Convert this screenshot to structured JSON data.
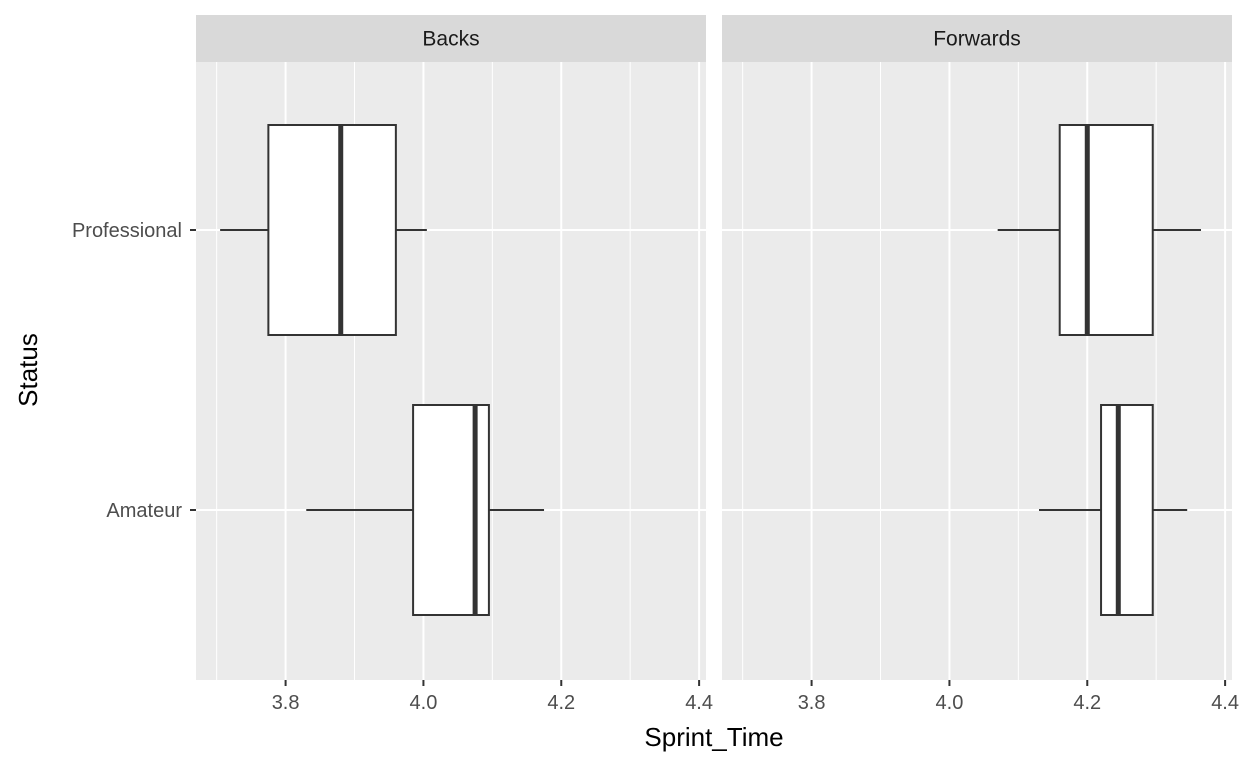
{
  "chart_data": {
    "type": "boxplot",
    "orientation": "horizontal",
    "xlabel": "Sprint_Time",
    "ylabel": "Status",
    "xlim": [
      3.67,
      4.41
    ],
    "x_ticks": [
      3.8,
      4.0,
      4.2,
      4.4
    ],
    "x_tick_labels": [
      "3.8",
      "4.0",
      "4.2",
      "4.4"
    ],
    "categories": [
      "Professional",
      "Amateur"
    ],
    "grid": true,
    "colors": {
      "panel_bg": "#ebebeb",
      "strip_bg": "#d9d9d9",
      "grid": "#ffffff",
      "box_fill": "#ffffff",
      "box_stroke": "#333333"
    },
    "facets": [
      {
        "label": "Backs",
        "boxes": [
          {
            "category": "Professional",
            "whisker_low": 3.705,
            "q1": 3.775,
            "median": 3.88,
            "q3": 3.96,
            "whisker_high": 4.005
          },
          {
            "category": "Amateur",
            "whisker_low": 3.83,
            "q1": 3.985,
            "median": 4.075,
            "q3": 4.095,
            "whisker_high": 4.175
          }
        ]
      },
      {
        "label": "Forwards",
        "boxes": [
          {
            "category": "Professional",
            "whisker_low": 4.07,
            "q1": 4.16,
            "median": 4.2,
            "q3": 4.295,
            "whisker_high": 4.365
          },
          {
            "category": "Amateur",
            "whisker_low": 4.13,
            "q1": 4.22,
            "median": 4.245,
            "q3": 4.295,
            "whisker_high": 4.345
          }
        ]
      }
    ]
  }
}
